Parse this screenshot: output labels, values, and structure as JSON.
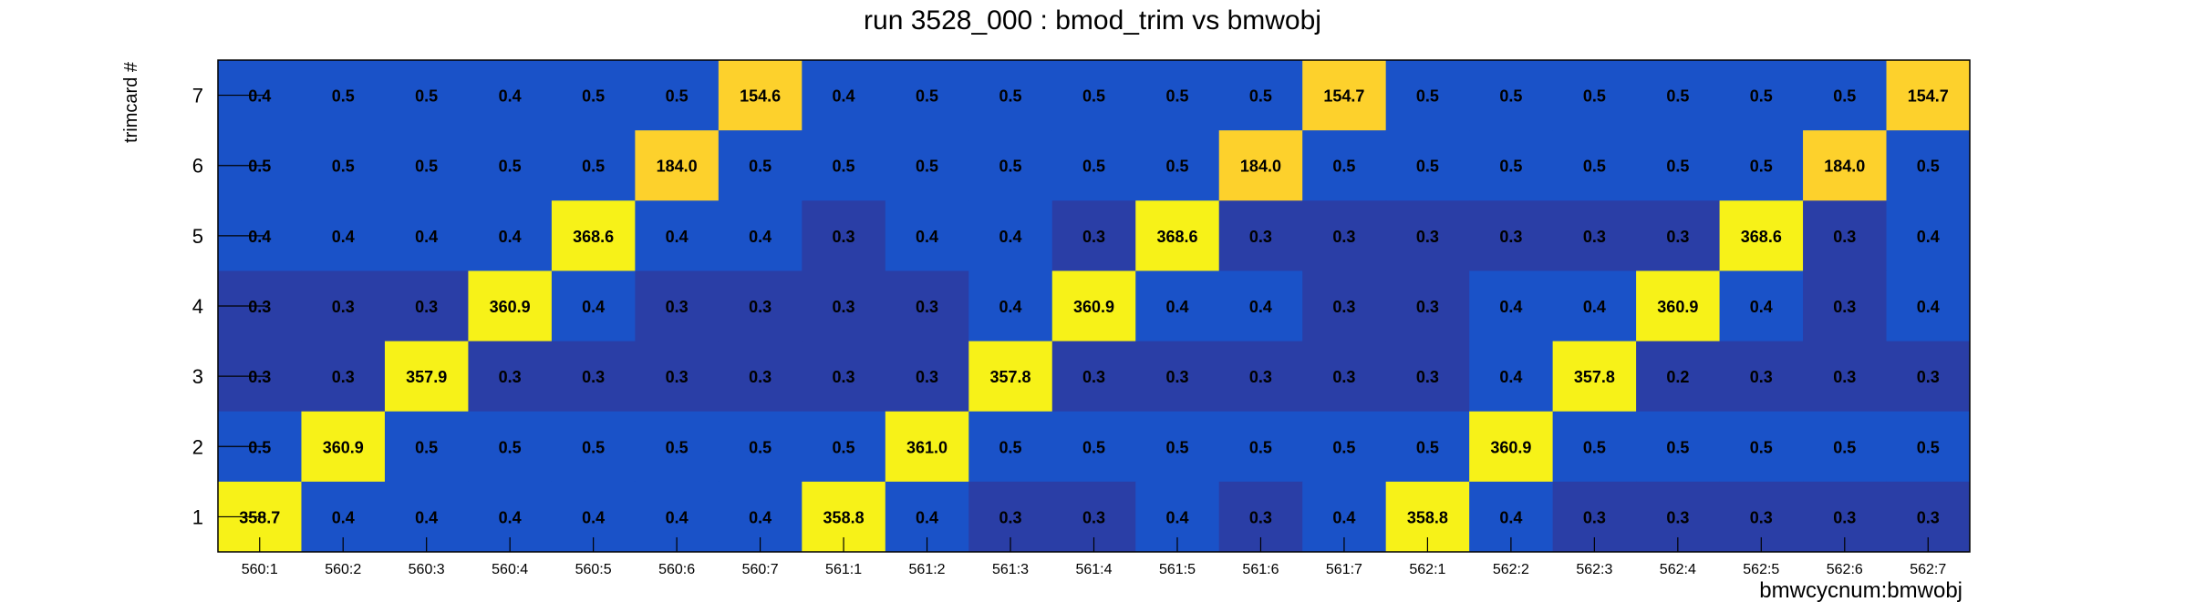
{
  "chart_data": {
    "type": "heatmap",
    "title": "run 3528_000 : bmod_trim vs bmwobj",
    "xlabel": "bmwcycnum:bmwobj",
    "ylabel": "trimcard #",
    "x_categories": [
      "560:1",
      "560:2",
      "560:3",
      "560:4",
      "560:5",
      "560:6",
      "560:7",
      "561:1",
      "561:2",
      "561:3",
      "561:4",
      "561:5",
      "561:6",
      "561:7",
      "562:1",
      "562:2",
      "562:3",
      "562:4",
      "562:5",
      "562:6",
      "562:7"
    ],
    "y_categories": [
      "1",
      "2",
      "3",
      "4",
      "5",
      "6",
      "7"
    ],
    "rows": [
      {
        "y": "7",
        "values": [
          0.4,
          0.5,
          0.5,
          0.4,
          0.5,
          0.5,
          154.6,
          0.4,
          0.5,
          0.5,
          0.5,
          0.5,
          0.5,
          154.7,
          0.5,
          0.5,
          0.5,
          0.5,
          0.5,
          0.5,
          154.7
        ]
      },
      {
        "y": "6",
        "values": [
          0.5,
          0.5,
          0.5,
          0.5,
          0.5,
          184.0,
          0.5,
          0.5,
          0.5,
          0.5,
          0.5,
          0.5,
          184.0,
          0.5,
          0.5,
          0.5,
          0.5,
          0.5,
          0.5,
          184.0,
          0.5
        ]
      },
      {
        "y": "5",
        "values": [
          0.4,
          0.4,
          0.4,
          0.4,
          368.6,
          0.4,
          0.4,
          0.3,
          0.4,
          0.4,
          0.3,
          368.6,
          0.3,
          0.3,
          0.3,
          0.3,
          0.3,
          0.3,
          368.6,
          0.3,
          0.4
        ]
      },
      {
        "y": "4",
        "values": [
          0.3,
          0.3,
          0.3,
          360.9,
          0.4,
          0.3,
          0.3,
          0.3,
          0.3,
          0.4,
          360.9,
          0.4,
          0.4,
          0.3,
          0.3,
          0.4,
          0.4,
          360.9,
          0.4,
          0.3,
          0.4
        ]
      },
      {
        "y": "3",
        "values": [
          0.3,
          0.3,
          357.9,
          0.3,
          0.3,
          0.3,
          0.3,
          0.3,
          0.3,
          357.8,
          0.3,
          0.3,
          0.3,
          0.3,
          0.3,
          0.4,
          357.8,
          0.2,
          0.3,
          0.3,
          0.3
        ]
      },
      {
        "y": "2",
        "values": [
          0.5,
          360.9,
          0.5,
          0.5,
          0.5,
          0.5,
          0.5,
          0.5,
          361.0,
          0.5,
          0.5,
          0.5,
          0.5,
          0.5,
          0.5,
          360.9,
          0.5,
          0.5,
          0.5,
          0.5,
          0.5
        ]
      },
      {
        "y": "1",
        "values": [
          358.7,
          0.4,
          0.4,
          0.4,
          0.4,
          0.4,
          0.4,
          358.8,
          0.4,
          0.3,
          0.3,
          0.4,
          0.3,
          0.4,
          358.8,
          0.4,
          0.3,
          0.3,
          0.3,
          0.3,
          0.3
        ]
      }
    ],
    "colors": {
      "low_dark": "#2a3ea6",
      "low": "#1a52c8",
      "medium": "#fdd12c",
      "high": "#f7f218"
    }
  }
}
